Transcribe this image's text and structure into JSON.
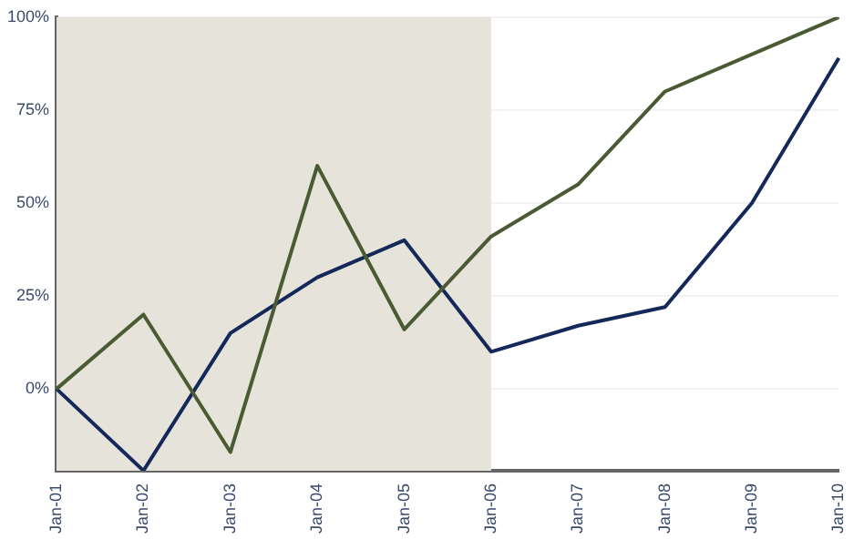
{
  "chart_data": {
    "type": "line",
    "categories": [
      "Jan-01",
      "Jan-02",
      "Jan-03",
      "Jan-04",
      "Jan-05",
      "Jan-06",
      "Jan-07",
      "Jan-08",
      "Jan-09",
      "Jan-10"
    ],
    "series": [
      {
        "color": "#4a5a32",
        "values": [
          0,
          20,
          -17,
          60,
          16,
          41,
          55,
          80,
          90,
          100
        ]
      },
      {
        "color": "#14285a",
        "values": [
          0,
          -22,
          15,
          30,
          40,
          10,
          17,
          22,
          50,
          89
        ]
      }
    ],
    "ylim": [
      -22,
      100
    ],
    "yticks": [
      {
        "value": 0,
        "label": "0%"
      },
      {
        "value": 25,
        "label": "25%"
      },
      {
        "value": 50,
        "label": "50%"
      },
      {
        "value": 75,
        "label": "75%"
      },
      {
        "value": 100,
        "label": "100%"
      }
    ],
    "bands": [
      {
        "axis": "x",
        "from": "Jan-01",
        "to": "Jan-06",
        "color": "#e6e4da"
      }
    ],
    "grid": "y",
    "legend": false,
    "marker": "none",
    "line_style": "solid"
  }
}
